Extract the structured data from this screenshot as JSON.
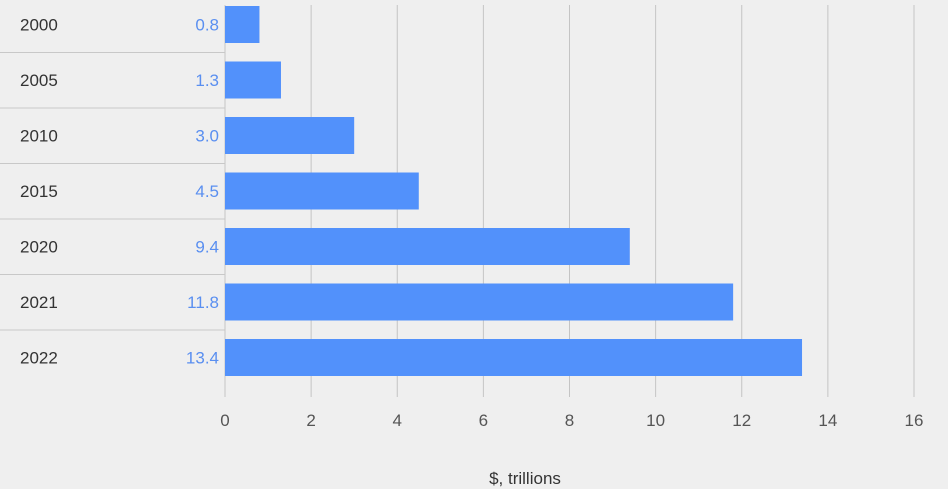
{
  "chart_data": {
    "type": "bar",
    "orientation": "horizontal",
    "categories": [
      "2000",
      "2005",
      "2010",
      "2015",
      "2020",
      "2021",
      "2022"
    ],
    "values": [
      0.8,
      1.3,
      3.0,
      4.5,
      9.4,
      11.8,
      13.4
    ],
    "value_labels": [
      "0.8",
      "1.3",
      "3.0",
      "4.5",
      "9.4",
      "11.8",
      "13.4"
    ],
    "xlabel": "$, trillions",
    "xlim": [
      0,
      16
    ],
    "xticks": [
      0,
      2,
      4,
      6,
      8,
      10,
      12,
      14,
      16
    ],
    "grid": "vertical",
    "colors": {
      "bar": "#5291fb",
      "value_label": "#5a8ff0",
      "grid": "#c4c4c4",
      "separator": "#c8c8c8",
      "background": "#efefef"
    }
  }
}
